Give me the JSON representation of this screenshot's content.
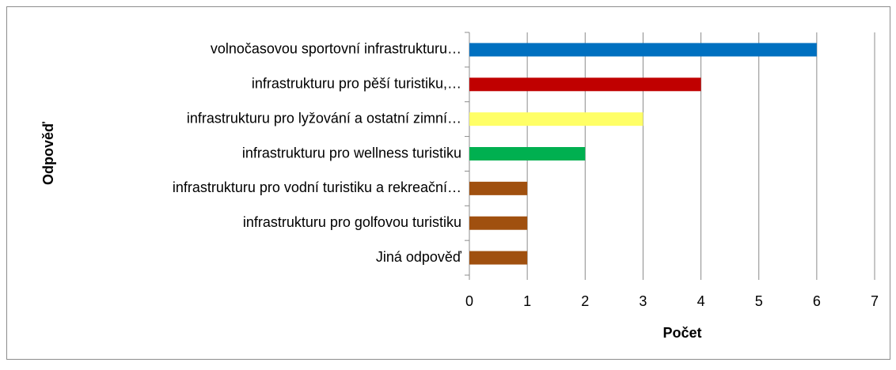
{
  "chart_data": {
    "type": "barh",
    "categories": [
      "volnočasovou sportovní infrastrukturu…",
      "infrastrukturu pro pěší turistiku,…",
      "infrastrukturu pro lyžování a ostatní zimní…",
      "infrastrukturu pro wellness turistiku",
      "infrastrukturu pro vodní turistiku a rekreační…",
      "infrastrukturu pro golfovou turistiku",
      "Jiná odpověď"
    ],
    "values": [
      6,
      4,
      3,
      2,
      1,
      1,
      1
    ],
    "colors": [
      "#0070c0",
      "#c00000",
      "#ffff66",
      "#00b050",
      "#a0500f",
      "#a0500f",
      "#a0500f"
    ],
    "xlabel": "Počet",
    "ylabel": "Odpověď",
    "xlim": [
      0,
      7
    ],
    "xticks": [
      0,
      1,
      2,
      3,
      4,
      5,
      6,
      7
    ],
    "grid": true
  }
}
